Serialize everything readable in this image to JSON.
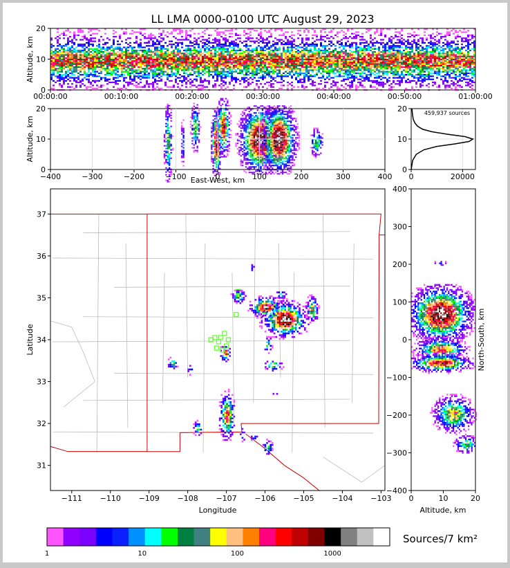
{
  "title": "LL LMA 0000-0100 UTC August 29, 2023",
  "chart_data": [
    {
      "panel": "altitude-time",
      "type": "heatmap",
      "ylabel": "Altitude, km",
      "ylim": [
        0,
        20
      ],
      "y_ticks": [
        "0",
        "10",
        "20"
      ],
      "x_ticks": [
        "00:00:00",
        "00:10:00",
        "00:20:00",
        "00:30:00",
        "00:40:00",
        "00:50:00",
        "01:00:00"
      ],
      "altitude_profile": [
        [
          0,
          0.02
        ],
        [
          2,
          0.12
        ],
        [
          4,
          0.3
        ],
        [
          6,
          0.55
        ],
        [
          7,
          0.75
        ],
        [
          8,
          0.92
        ],
        [
          9,
          1.0
        ],
        [
          10,
          1.0
        ],
        [
          11,
          0.95
        ],
        [
          12,
          0.82
        ],
        [
          13,
          0.6
        ],
        [
          14,
          0.42
        ],
        [
          15,
          0.3
        ],
        [
          16,
          0.2
        ],
        [
          17,
          0.12
        ],
        [
          18,
          0.08
        ],
        [
          19,
          0.05
        ],
        [
          20,
          0.03
        ]
      ]
    },
    {
      "panel": "altitude-eastwest",
      "type": "heatmap",
      "xlabel": "East-West, km",
      "ylabel": "Altitude, km",
      "xlim": [
        -400,
        400
      ],
      "ylim": [
        0,
        20
      ],
      "x_ticks": [
        "−400",
        "−300",
        "−200",
        "−100",
        "0",
        "100",
        "200",
        "300",
        "400"
      ],
      "y_ticks": [
        "0",
        "10",
        "20"
      ],
      "clusters": [
        {
          "x": -120,
          "z": 9,
          "wx": 6,
          "wz": 8,
          "peak": 0.55
        },
        {
          "x": -85,
          "z": 9,
          "wx": 3,
          "wz": 5,
          "peak": 0.3
        },
        {
          "x": -55,
          "z": 14,
          "wx": 7,
          "wz": 5,
          "peak": 0.5
        },
        {
          "x": -5,
          "z": 9,
          "wx": 7,
          "wz": 7,
          "peak": 0.9
        },
        {
          "x": 12,
          "z": 14,
          "wx": 10,
          "wz": 6,
          "peak": 0.8
        },
        {
          "x": 100,
          "z": 10,
          "wx": 30,
          "wz": 7,
          "peak": 1.0
        },
        {
          "x": 145,
          "z": 10,
          "wx": 25,
          "wz": 7,
          "peak": 1.0
        },
        {
          "x": 235,
          "z": 9,
          "wx": 10,
          "wz": 3,
          "peak": 0.45
        }
      ]
    },
    {
      "panel": "source-histogram",
      "type": "line",
      "annotation": "459,937 sources",
      "xlim": [
        0,
        25000
      ],
      "ylim": [
        0,
        20
      ],
      "x_ticks": [
        "0",
        "20000"
      ],
      "y_ticks": [
        "0",
        "10",
        "20"
      ],
      "x": [
        0,
        600,
        2000,
        5000,
        10000,
        17000,
        22500,
        24000,
        21000,
        14000,
        8000,
        4500,
        2500,
        1500,
        800,
        500,
        300
      ],
      "y": [
        0,
        3,
        5,
        6.5,
        7.6,
        8.4,
        9.2,
        10.0,
        10.8,
        11.6,
        12.4,
        13.2,
        14.2,
        15.2,
        16.5,
        18,
        20
      ]
    },
    {
      "panel": "plan-view",
      "type": "heatmap",
      "xlabel": "Longitude",
      "ylabel": "Latitude",
      "xlim": [
        -111.55,
        -102.9
      ],
      "ylim": [
        30.4,
        37.6
      ],
      "x_ticks": [
        "−111",
        "−110",
        "−109",
        "−108",
        "−107",
        "−106",
        "−105",
        "−104",
        "−103"
      ],
      "y_ticks": [
        "31",
        "32",
        "33",
        "34",
        "35",
        "36",
        "37"
      ],
      "clusters": [
        {
          "lon": -106.0,
          "lat": 34.8,
          "rx": 0.25,
          "ry": 0.15,
          "peak": 0.9
        },
        {
          "lon": -105.5,
          "lat": 34.5,
          "rx": 0.35,
          "ry": 0.25,
          "peak": 1.0
        },
        {
          "lon": -106.7,
          "lat": 35.05,
          "rx": 0.12,
          "ry": 0.1,
          "peak": 0.5
        },
        {
          "lon": -105.6,
          "lat": 35.1,
          "rx": 0.1,
          "ry": 0.06,
          "peak": 0.4
        },
        {
          "lon": -104.8,
          "lat": 34.75,
          "rx": 0.1,
          "ry": 0.2,
          "peak": 0.6
        },
        {
          "lon": -105.95,
          "lat": 33.9,
          "rx": 0.08,
          "ry": 0.12,
          "peak": 0.45
        },
        {
          "lon": -105.8,
          "lat": 33.4,
          "rx": 0.15,
          "ry": 0.08,
          "peak": 0.5
        },
        {
          "lon": -107.05,
          "lat": 33.7,
          "rx": 0.08,
          "ry": 0.12,
          "peak": 0.8
        },
        {
          "lon": -107.0,
          "lat": 32.2,
          "rx": 0.12,
          "ry": 0.35,
          "peak": 0.75
        },
        {
          "lon": -107.75,
          "lat": 31.9,
          "rx": 0.08,
          "ry": 0.12,
          "peak": 0.4
        },
        {
          "lon": -108.4,
          "lat": 33.45,
          "rx": 0.08,
          "ry": 0.1,
          "peak": 0.5
        },
        {
          "lon": -107.95,
          "lat": 33.3,
          "rx": 0.05,
          "ry": 0.08,
          "peak": 0.3
        },
        {
          "lon": -106.6,
          "lat": 31.75,
          "rx": 0.05,
          "ry": 0.1,
          "peak": 0.35
        },
        {
          "lon": -106.3,
          "lat": 31.7,
          "rx": 0.08,
          "ry": 0.06,
          "peak": 0.3
        },
        {
          "lon": -105.95,
          "lat": 31.45,
          "rx": 0.08,
          "ry": 0.12,
          "peak": 0.45
        },
        {
          "lon": -105.75,
          "lat": 32.7,
          "rx": 0.05,
          "ry": 0.05,
          "peak": 0.25
        },
        {
          "lon": -106.35,
          "lat": 35.75,
          "rx": 0.05,
          "ry": 0.08,
          "peak": 0.25
        }
      ],
      "stations": [
        {
          "lon": -107.3,
          "lat": 34.05
        },
        {
          "lon": -107.2,
          "lat": 33.95
        },
        {
          "lon": -107.05,
          "lat": 34.15
        },
        {
          "lon": -106.95,
          "lat": 34.0
        },
        {
          "lon": -107.15,
          "lat": 34.05
        },
        {
          "lon": -107.0,
          "lat": 33.85
        },
        {
          "lon": -107.1,
          "lat": 33.75
        },
        {
          "lon": -107.25,
          "lat": 33.8
        },
        {
          "lon": -106.75,
          "lat": 34.6
        },
        {
          "lon": -106.7,
          "lat": 35.15
        },
        {
          "lon": -107.4,
          "lat": 34.0
        }
      ]
    },
    {
      "panel": "north-south-altitude",
      "type": "heatmap",
      "xlabel": "Altitude, km",
      "ylabel": "North-South, km",
      "xlim": [
        0,
        20
      ],
      "ylim": [
        -400,
        400
      ],
      "x_ticks": [
        "0",
        "10",
        "20"
      ],
      "y_ticks": [
        "−400",
        "−300",
        "−200",
        "−100",
        "0",
        "100",
        "200",
        "300",
        "400"
      ],
      "clusters": [
        {
          "z": 9,
          "ns": 70,
          "wz": 6,
          "wns": 45,
          "peak": 1.0
        },
        {
          "z": 9,
          "ns": -25,
          "wz": 5,
          "wns": 20,
          "peak": 0.7
        },
        {
          "z": 9,
          "ns": -60,
          "wz": 6,
          "wns": 15,
          "peak": 0.8
        },
        {
          "z": 13,
          "ns": -195,
          "wz": 4,
          "wns": 30,
          "peak": 0.6
        },
        {
          "z": 17,
          "ns": -275,
          "wz": 2.5,
          "wns": 15,
          "peak": 0.45
        },
        {
          "z": 9,
          "ns": 205,
          "wz": 1.5,
          "wns": 5,
          "peak": 0.2
        }
      ]
    }
  ],
  "colorbar": {
    "label": "Sources/7 km²",
    "tick_labels": [
      "1",
      "10",
      "100",
      "1000"
    ],
    "colors": [
      "#ff55ff",
      "#9000ff",
      "#7a00ff",
      "#0000ff",
      "#0a20ff",
      "#0090ff",
      "#00ffff",
      "#00ff00",
      "#008040",
      "#408080",
      "#ffff00",
      "#ffc080",
      "#ff8000",
      "#ff0080",
      "#ff0000",
      "#c00000",
      "#800000",
      "#000000",
      "#808080",
      "#c0c0c0",
      "#ffffff"
    ]
  },
  "map": {
    "state_border_color": "#cc0000",
    "county_color": "#bbbbbb",
    "station_color": "#66ff33"
  }
}
